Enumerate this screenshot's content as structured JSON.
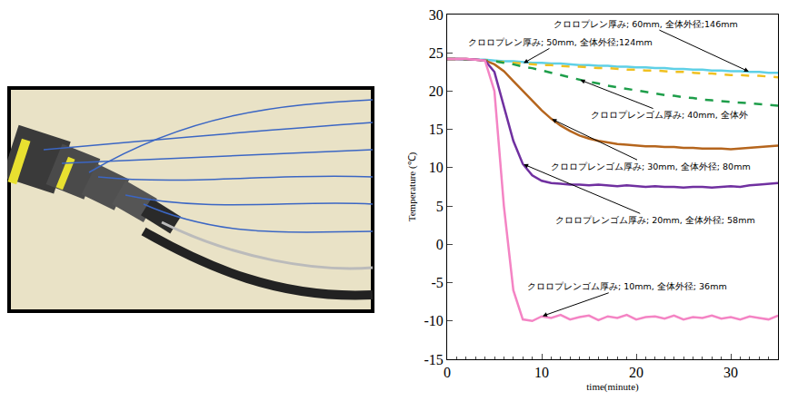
{
  "chart_data": {
    "type": "line",
    "x_label": "time(minute)",
    "y_label": "Temperature (℃)",
    "x": [
      0,
      1,
      2,
      3,
      4,
      5,
      6,
      7,
      8,
      9,
      10,
      11,
      12,
      13,
      14,
      15,
      16,
      17,
      18,
      19,
      20,
      21,
      22,
      23,
      24,
      25,
      26,
      27,
      28,
      29,
      30,
      31,
      32,
      33,
      34,
      35
    ],
    "xlim": [
      0,
      35
    ],
    "xticks": [
      0,
      10,
      20,
      30
    ],
    "ylim": [
      -15,
      30
    ],
    "yticks": [
      -15,
      -10,
      -5,
      0,
      5,
      10,
      15,
      20,
      25,
      30
    ],
    "grid": false,
    "series": [
      {
        "name": "クロロプレン厚み; 60mm, 全体外径;146mm",
        "color": "#5fd0e6",
        "line_style": "solid",
        "values": [
          24.2,
          24.2,
          24.1,
          24.1,
          24.1,
          24,
          23.9,
          23.9,
          23.8,
          23.7,
          23.7,
          23.6,
          23.6,
          23.5,
          23.4,
          23.4,
          23.3,
          23.3,
          23.2,
          23.2,
          23.1,
          23.1,
          23,
          23,
          22.9,
          22.9,
          22.8,
          22.8,
          22.7,
          22.7,
          22.6,
          22.6,
          22.5,
          22.5,
          22.4,
          22.4
        ]
      },
      {
        "name": "クロロプレン厚み; 50mm, 全体外径;124mm",
        "color": "#f0c020",
        "line_style": "dash",
        "values": [
          24.2,
          24.2,
          24.1,
          24.1,
          24,
          23.9,
          23.8,
          23.7,
          23.6,
          23.5,
          23.4,
          23.4,
          23.3,
          23.2,
          23.2,
          23.1,
          23,
          23,
          22.9,
          22.8,
          22.8,
          22.7,
          22.7,
          22.6,
          22.5,
          22.5,
          22.4,
          22.3,
          22.3,
          22.2,
          22.1,
          22.1,
          22,
          22,
          21.9,
          21.8
        ]
      },
      {
        "name": "クロロプレンゴム厚み; 40mm, 全体外",
        "color": "#1e9e4a",
        "line_style": "dash",
        "values": [
          24.2,
          24.2,
          24.1,
          24.1,
          24,
          23.9,
          23.7,
          23.5,
          23.2,
          23,
          22.7,
          22.4,
          22.1,
          21.8,
          21.5,
          21.2,
          21,
          20.7,
          20.5,
          20.3,
          20.1,
          19.9,
          19.7,
          19.5,
          19.4,
          19.2,
          19.1,
          18.9,
          18.8,
          18.7,
          18.6,
          18.5,
          18.4,
          18.3,
          18.2,
          18.1
        ]
      },
      {
        "name": "クロロプレンゴム厚み; 30mm, 全体外径; 80mm",
        "color": "#b5651d",
        "line_style": "solid",
        "values": [
          24.2,
          24.2,
          24.2,
          24.1,
          24,
          23.5,
          22.6,
          21.3,
          20,
          18.7,
          17.5,
          16.4,
          15.5,
          14.8,
          14.2,
          13.8,
          13.5,
          13.3,
          13.1,
          13,
          12.9,
          12.8,
          12.8,
          12.7,
          12.7,
          12.6,
          12.6,
          12.5,
          12.5,
          12.5,
          12.4,
          12.5,
          12.6,
          12.7,
          12.8,
          12.9
        ]
      },
      {
        "name": "クロロプレンゴム厚み; 20mm, 全体外径; 58mm",
        "color": "#7030a0",
        "line_style": "solid",
        "values": [
          24.2,
          24.2,
          24.2,
          24.1,
          24,
          22.5,
          18,
          13.5,
          10.5,
          9,
          8.3,
          8,
          7.9,
          7.8,
          7.8,
          7.7,
          7.8,
          7.7,
          7.6,
          7.7,
          7.6,
          7.5,
          7.6,
          7.5,
          7.5,
          7.4,
          7.5,
          7.5,
          7.4,
          7.5,
          7.6,
          7.5,
          7.7,
          7.8,
          7.9,
          8
        ]
      },
      {
        "name": "クロロプレンゴム厚み; 10mm, 全体外径; 36mm",
        "color": "#f484c4",
        "line_style": "solid",
        "values": [
          24.2,
          24.2,
          24.2,
          24.1,
          24,
          20,
          5,
          -6,
          -9.8,
          -10,
          -9.4,
          -9.6,
          -9.2,
          -9.8,
          -9.5,
          -9.3,
          -9.9,
          -9.4,
          -9.6,
          -9.2,
          -9.8,
          -9.5,
          -9.4,
          -9.7,
          -9.3,
          -9.8,
          -9.5,
          -9.6,
          -9.3,
          -9.7,
          -9.5,
          -9.8,
          -9.4,
          -9.6,
          -9.8,
          -9.3
        ]
      }
    ]
  }
}
